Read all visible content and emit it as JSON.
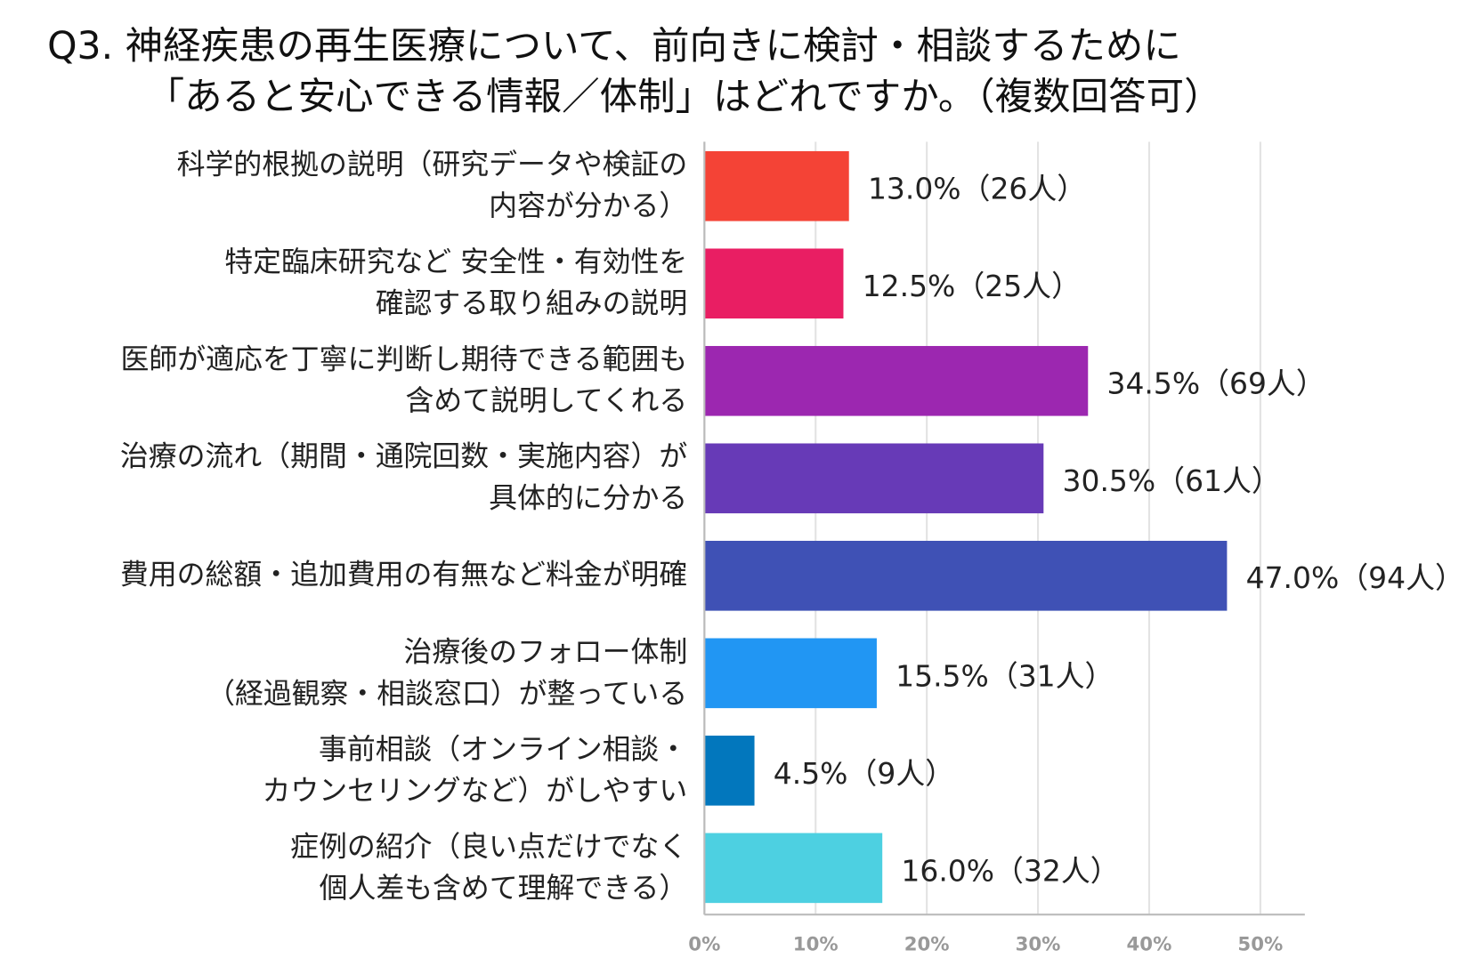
{
  "chart_data": {
    "type": "bar",
    "orientation": "horizontal",
    "title": [
      "Q3. 神経疾患の再生医療について、前向きに検討・相談するために",
      "「あると安心できる情報／体制」はどれですか。（複数回答可）"
    ],
    "categories": [
      "科学的根拠の説明（研究データや検証の\n内容が分かる）",
      "特定臨床研究など 安全性・有効性を\n確認する取り組みの説明",
      "医師が適応を丁寧に判断し期待できる範囲も\n含めて説明してくれる",
      "治療の流れ（期間・通院回数・実施内容）が\n具体的に分かる",
      "費用の総額・追加費用の有無など料金が明確",
      "治療後のフォロー体制\n（経過観察・相談窓口）が整っている",
      "事前相談（オンライン相談・\nカウンセリングなど）がしやすい",
      "症例の紹介（良い点だけでなく\n個人差も含めて理解できる）"
    ],
    "values": [
      13.0,
      12.5,
      34.5,
      30.5,
      47.0,
      15.5,
      4.5,
      16.0
    ],
    "value_labels": [
      "13.0%（26人）",
      "12.5%（25人）",
      "34.5%（69人）",
      "30.5%（61人）",
      "47.0%（94人）",
      "15.5%（31人）",
      "4.5%（9人）",
      "16.0%（32人）"
    ],
    "colors": [
      "#f44336",
      "#e91e63",
      "#9c27b0",
      "#673ab7",
      "#3f51b5",
      "#2196f3",
      "#0277bd",
      "#4dd0e1"
    ],
    "xlim": [
      0,
      54
    ],
    "xticks": [
      {
        "value": 0,
        "label": "0%"
      },
      {
        "value": 10,
        "label": "10%"
      },
      {
        "value": 20,
        "label": "20%"
      },
      {
        "value": 30,
        "label": "30%"
      },
      {
        "value": 40,
        "label": "40%"
      },
      {
        "value": 50,
        "label": "50%"
      }
    ],
    "grid": true
  }
}
